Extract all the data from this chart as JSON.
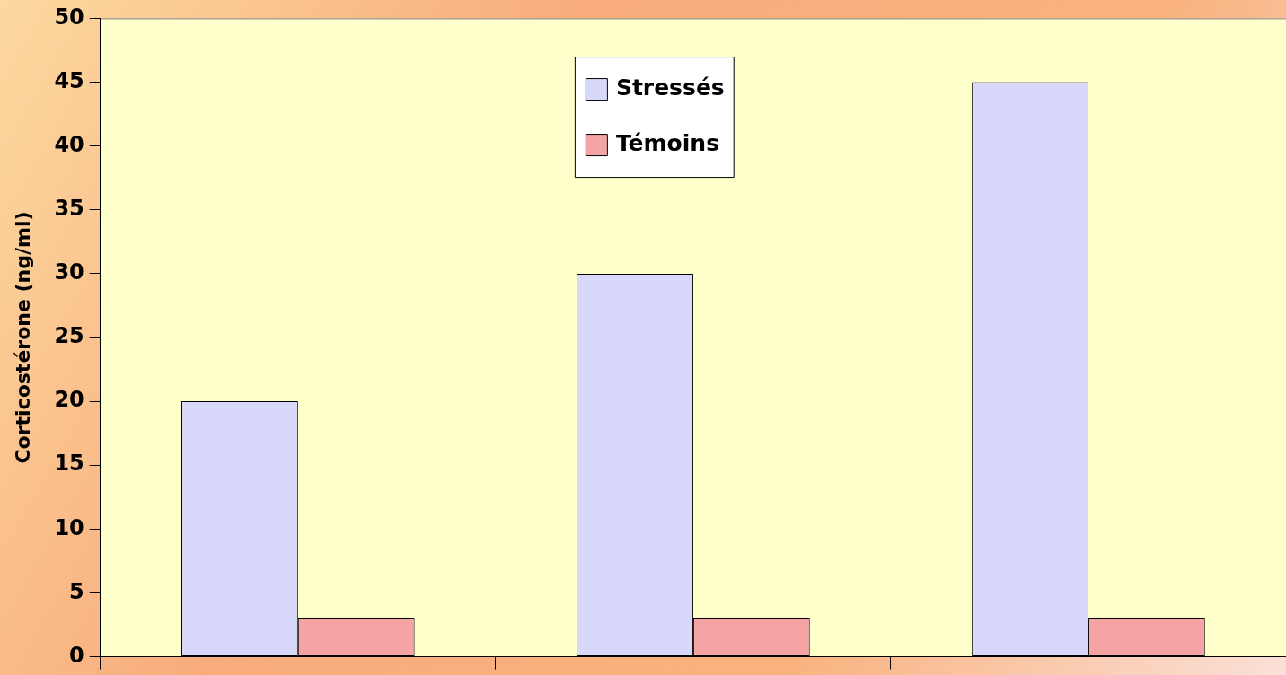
{
  "chart_data": {
    "type": "bar",
    "ylabel": "Corticostérone (ng/ml)",
    "categories": [
      null,
      null,
      null
    ],
    "series": [
      {
        "name": "Stressés",
        "color": "#d8d8fa",
        "values": [
          20,
          30,
          45
        ]
      },
      {
        "name": "Témoins",
        "color": "#f4a4a4",
        "values": [
          3,
          3,
          3
        ]
      }
    ],
    "ylim": [
      0,
      50
    ],
    "yticks": [
      0,
      5,
      10,
      15,
      20,
      25,
      30,
      35,
      40,
      45,
      50
    ],
    "grid": false,
    "legend": "top"
  }
}
